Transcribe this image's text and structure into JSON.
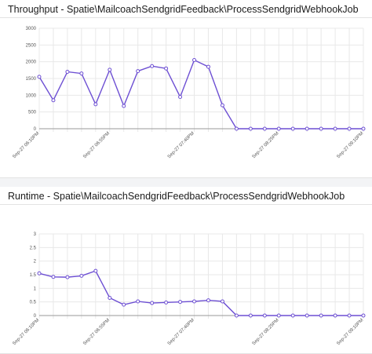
{
  "charts": [
    {
      "title": "Throughput - Spatie\\MailcoachSendgridFeedback\\ProcessSendgridWebhookJob"
    },
    {
      "title": "Runtime - Spatie\\MailcoachSendgridFeedback\\ProcessSendgridWebhookJob"
    }
  ],
  "colors": {
    "line": "#6d4fd3",
    "grid": "#e8e8e8",
    "axis": "#999999"
  },
  "chart_data": [
    {
      "type": "line",
      "title": "Throughput - Spatie\\MailcoachSendgridFeedback\\ProcessSendgridWebhookJob",
      "xlabel": "",
      "ylabel": "",
      "ylim": [
        0,
        3000
      ],
      "yticks": [
        "0",
        "500",
        "1000",
        "1500",
        "2000",
        "2500",
        "3000"
      ],
      "xtick_labels": [
        "Sep-27 06:10PM",
        "Sep-27 06:55PM",
        "Sep-27 07:40PM",
        "Sep-27 08:25PM",
        "Sep-27 09:10PM"
      ],
      "xtick_index": [
        0,
        5,
        11,
        17,
        23
      ],
      "grid": true,
      "series": [
        {
          "values": [
            1550,
            850,
            1700,
            1650,
            730,
            1760,
            680,
            1720,
            1870,
            1800,
            950,
            2050,
            1850,
            700,
            0,
            0,
            0,
            0,
            0,
            0,
            0,
            0,
            0,
            0
          ]
        }
      ]
    },
    {
      "type": "line",
      "title": "Runtime - Spatie\\MailcoachSendgridFeedback\\ProcessSendgridWebhookJob",
      "xlabel": "",
      "ylabel": "",
      "ylim": [
        0,
        3
      ],
      "yticks": [
        "0",
        "0.5",
        "1",
        "1.5",
        "2",
        "2.5",
        "3"
      ],
      "xtick_labels": [
        "Sep-27 06:10PM",
        "Sep-27 06:55PM",
        "Sep-27 07:40PM",
        "Sep-27 08:25PM",
        "Sep-27 09:10PM"
      ],
      "xtick_index": [
        0,
        5,
        11,
        17,
        23
      ],
      "grid": true,
      "series": [
        {
          "values": [
            1.55,
            1.42,
            1.41,
            1.46,
            1.64,
            0.65,
            0.4,
            0.52,
            0.46,
            0.48,
            0.5,
            0.52,
            0.56,
            0.52,
            0,
            0,
            0,
            0,
            0,
            0,
            0,
            0,
            0,
            0
          ]
        }
      ]
    }
  ]
}
